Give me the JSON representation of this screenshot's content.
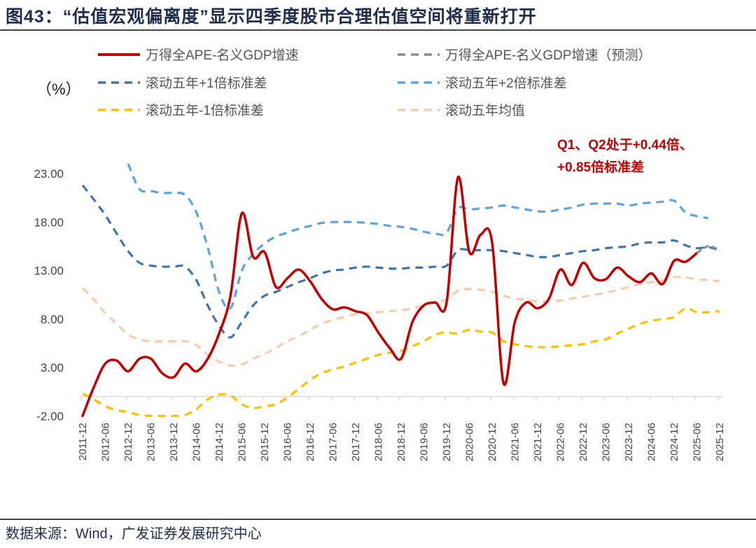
{
  "title": "图43：“估值宏观偏离度”显示四季度股市合理估值空间将重新打开",
  "source": "数据来源：Wind，广发证券发展研究中心",
  "chart_data": {
    "type": "line",
    "unit_label": "（%）",
    "ylim": [
      -2,
      23
    ],
    "yticks": [
      "23.00",
      "18.00",
      "13.00",
      "8.00",
      "3.00",
      "-2.00"
    ],
    "ytick_values": [
      23,
      18,
      13,
      8,
      3,
      -2
    ],
    "xtick_labels": [
      "2011-12",
      "2012-06",
      "2012-12",
      "2013-06",
      "2013-12",
      "2014-06",
      "2014-12",
      "2015-06",
      "2015-12",
      "2016-06",
      "2016-12",
      "2017-06",
      "2017-12",
      "2018-06",
      "2018-12",
      "2019-06",
      "2019-12",
      "2020-06",
      "2020-12",
      "2021-06",
      "2021-12",
      "2022-06",
      "2022-12",
      "2023-06",
      "2023-12",
      "2024-06",
      "2024-12",
      "2025-06",
      "2025-12"
    ],
    "x": [
      "2011-12",
      "2012-03",
      "2012-06",
      "2012-09",
      "2012-12",
      "2013-03",
      "2013-06",
      "2013-09",
      "2013-12",
      "2014-03",
      "2014-06",
      "2014-09",
      "2014-12",
      "2015-03",
      "2015-06",
      "2015-09",
      "2015-12",
      "2016-03",
      "2016-06",
      "2016-09",
      "2016-12",
      "2017-03",
      "2017-06",
      "2017-09",
      "2017-12",
      "2018-03",
      "2018-06",
      "2018-09",
      "2018-12",
      "2019-03",
      "2019-06",
      "2019-09",
      "2019-12",
      "2020-03",
      "2020-06",
      "2020-09",
      "2020-12",
      "2021-03",
      "2021-06",
      "2021-09",
      "2021-12",
      "2022-03",
      "2022-06",
      "2022-09",
      "2022-12",
      "2023-03",
      "2023-06",
      "2023-09",
      "2023-12",
      "2024-03",
      "2024-06",
      "2024-09",
      "2024-12",
      "2025-03",
      "2025-06",
      "2025-09",
      "2025-12"
    ],
    "grid": false,
    "legend_placement": "top",
    "series": [
      {
        "name": "万得全APE-名义GDP增速",
        "color": "#c00000",
        "style": "solid",
        "values": [
          -2.0,
          1.0,
          3.4,
          3.7,
          2.6,
          3.9,
          3.9,
          2.4,
          2.0,
          3.4,
          2.6,
          3.9,
          6.5,
          10.4,
          18.9,
          14.4,
          14.9,
          11.3,
          12.2,
          13.1,
          11.9,
          10.1,
          9.0,
          9.2,
          8.8,
          8.4,
          6.6,
          5.0,
          3.9,
          7.7,
          9.4,
          9.7,
          9.7,
          22.6,
          14.9,
          16.7,
          15.9,
          1.4,
          7.7,
          9.7,
          9.1,
          10.1,
          13.1,
          11.5,
          13.8,
          12.2,
          12.1,
          13.3,
          12.4,
          11.8,
          12.7,
          11.6,
          14.0,
          13.9,
          14.8,
          null,
          null
        ]
      },
      {
        "name": "万得全APE-名义GDP增速（预测）",
        "color": "#8c8c8c",
        "style": "dash",
        "values": [
          null,
          null,
          null,
          null,
          null,
          null,
          null,
          null,
          null,
          null,
          null,
          null,
          null,
          null,
          null,
          null,
          null,
          null,
          null,
          null,
          null,
          null,
          null,
          null,
          null,
          null,
          null,
          null,
          null,
          null,
          null,
          null,
          null,
          null,
          null,
          null,
          null,
          null,
          null,
          null,
          null,
          null,
          null,
          null,
          null,
          null,
          null,
          null,
          null,
          null,
          null,
          null,
          null,
          null,
          14.8,
          15.5,
          15.1
        ]
      },
      {
        "name": "滚动五年+1倍标准差",
        "color": "#3e75a9",
        "style": "dash",
        "values": [
          21.8,
          20.3,
          18.7,
          16.8,
          15.0,
          13.8,
          13.5,
          13.4,
          13.4,
          13.4,
          12.0,
          9.4,
          7.3,
          6.1,
          7.7,
          9.4,
          10.4,
          10.8,
          11.3,
          11.8,
          12.2,
          12.7,
          13.0,
          13.1,
          13.3,
          13.4,
          13.3,
          13.2,
          13.2,
          13.3,
          13.3,
          13.4,
          13.5,
          15.1,
          15.1,
          15.1,
          15.1,
          15.0,
          14.8,
          14.6,
          14.4,
          14.4,
          14.6,
          14.8,
          15.0,
          15.1,
          15.3,
          15.4,
          15.5,
          15.8,
          15.9,
          15.9,
          16.1,
          15.6,
          15.3,
          15.4,
          15.1
        ]
      },
      {
        "name": "滚动五年+2倍标准差",
        "color": "#5ba3da",
        "style": "dash",
        "values": [
          null,
          null,
          null,
          null,
          24.0,
          21.4,
          21.2,
          21.0,
          21.0,
          20.8,
          19.0,
          15.4,
          10.8,
          9.1,
          13.0,
          14.7,
          15.8,
          16.5,
          16.9,
          17.3,
          17.6,
          17.9,
          18.0,
          18.0,
          18.0,
          17.9,
          17.8,
          17.6,
          17.5,
          17.3,
          17.0,
          16.8,
          16.9,
          19.4,
          19.3,
          19.4,
          19.5,
          19.7,
          19.5,
          19.3,
          19.1,
          19.1,
          19.3,
          19.5,
          19.8,
          19.9,
          19.9,
          19.9,
          19.7,
          19.9,
          20.0,
          20.1,
          20.2,
          19.0,
          18.6,
          18.4,
          null
        ]
      },
      {
        "name": "滚动五年-1倍标准差",
        "color": "#ffc000",
        "style": "dash",
        "values": [
          0.3,
          -0.3,
          -1.0,
          -1.4,
          -1.6,
          -1.9,
          -2.0,
          -2.0,
          -2.0,
          -1.9,
          -1.3,
          -0.3,
          0.2,
          0.1,
          -0.8,
          -1.2,
          -1.0,
          -0.8,
          -0.1,
          0.8,
          1.7,
          2.4,
          2.8,
          3.1,
          3.5,
          3.9,
          4.3,
          4.5,
          4.7,
          5.2,
          5.7,
          6.4,
          6.6,
          6.5,
          6.9,
          6.7,
          6.6,
          5.7,
          5.4,
          5.2,
          5.1,
          5.1,
          5.2,
          5.3,
          5.4,
          5.7,
          5.9,
          6.5,
          7.0,
          7.5,
          7.8,
          8.0,
          8.2,
          9.1,
          8.7,
          8.7,
          8.8
        ]
      },
      {
        "name": "滚动五年均值",
        "color": "#f8cbad",
        "style": "dash",
        "values": [
          11.2,
          10.0,
          8.6,
          7.5,
          6.4,
          5.9,
          5.7,
          5.7,
          5.7,
          5.7,
          5.3,
          4.3,
          3.6,
          3.2,
          3.3,
          3.9,
          4.4,
          5.0,
          5.7,
          6.2,
          6.9,
          7.5,
          7.9,
          8.2,
          8.5,
          8.6,
          8.7,
          8.8,
          8.9,
          9.1,
          9.4,
          9.8,
          10.0,
          10.9,
          11.1,
          11.0,
          10.8,
          10.4,
          10.1,
          10.0,
          9.8,
          9.8,
          9.9,
          10.1,
          10.3,
          10.5,
          10.7,
          11.0,
          11.3,
          11.6,
          11.8,
          12.0,
          12.3,
          12.3,
          12.1,
          12.0,
          11.9
        ]
      }
    ],
    "annotation": [
      "Q1、Q2处于+0.44倍、",
      "+0.85倍标准差"
    ]
  }
}
